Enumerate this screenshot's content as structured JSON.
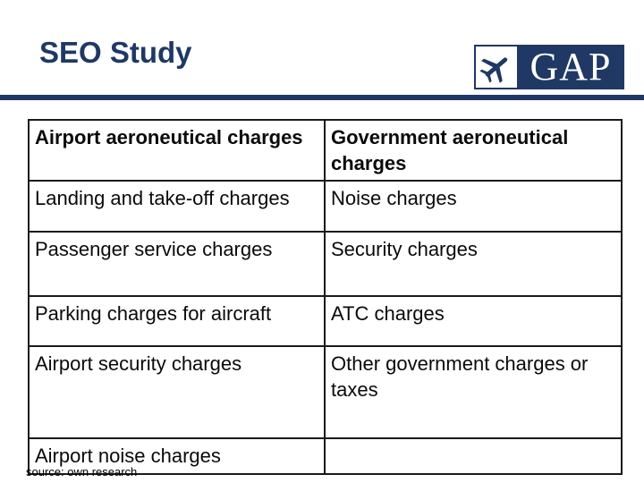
{
  "slide": {
    "title": "SEO Study",
    "logo_text": "GAP",
    "logo_icon": "airplane-icon",
    "brand_color": "#1f3864"
  },
  "table": {
    "headers": [
      "Airport aeroneutical charges",
      "Government aeroneutical charges"
    ],
    "rows": [
      [
        "Landing and take-off charges",
        "Noise charges"
      ],
      [
        "Passenger service charges",
        "Security charges"
      ],
      [
        "Parking charges for aircraft",
        "ATC charges"
      ],
      [
        "Airport security charges",
        "Other government charges or taxes"
      ],
      [
        "Airport noise charges",
        ""
      ]
    ]
  },
  "footer": {
    "source": "source: own research"
  }
}
